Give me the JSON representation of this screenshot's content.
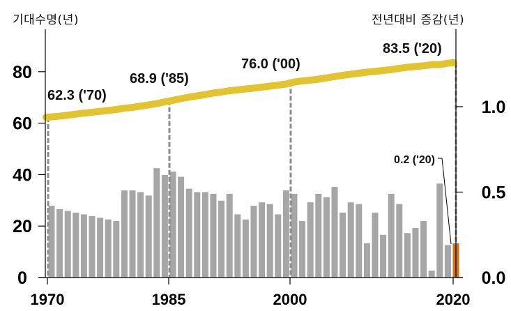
{
  "chart_data": {
    "type": "bar+line",
    "titles": {
      "left_axis": "기대수명(년)",
      "right_axis": "전년대비 증감(년)"
    },
    "x": [
      1970,
      1971,
      1972,
      1973,
      1974,
      1975,
      1976,
      1977,
      1978,
      1979,
      1980,
      1981,
      1982,
      1983,
      1984,
      1985,
      1986,
      1987,
      1988,
      1989,
      1990,
      1991,
      1992,
      1993,
      1994,
      1995,
      1996,
      1997,
      1998,
      1999,
      2000,
      2001,
      2002,
      2003,
      2004,
      2005,
      2006,
      2007,
      2008,
      2009,
      2010,
      2011,
      2012,
      2013,
      2014,
      2015,
      2016,
      2017,
      2018,
      2019,
      2020
    ],
    "x_tick_labels": [
      "1970",
      "1985",
      "2000",
      "2020"
    ],
    "x_ticks": [
      1970,
      1985,
      2000,
      2020
    ],
    "series": [
      {
        "name": "기대수명",
        "type": "line",
        "axis": "left",
        "color": "#E2C431",
        "values": [
          62.3,
          62.7,
          63.1,
          63.5,
          63.9,
          64.2,
          64.6,
          64.9,
          65.3,
          65.8,
          66.1,
          66.6,
          67.1,
          67.6,
          68.3,
          68.9,
          69.5,
          70.1,
          70.6,
          71.1,
          71.7,
          72.1,
          72.6,
          72.9,
          73.3,
          73.6,
          74.0,
          74.4,
          74.8,
          75.2,
          76.0,
          76.4,
          76.7,
          77.1,
          77.6,
          78.1,
          78.6,
          79.0,
          79.4,
          79.8,
          80.1,
          80.5,
          80.8,
          81.3,
          81.7,
          82.0,
          82.3,
          82.7,
          82.7,
          83.3,
          83.5
        ]
      },
      {
        "name": "전년대비 증감",
        "type": "bar",
        "axis": "right",
        "color": "#A6A6A6",
        "highlight_color": "#E46C0A",
        "highlight_index": 50,
        "values": [
          0.42,
          0.4,
          0.39,
          0.38,
          0.37,
          0.36,
          0.35,
          0.34,
          0.33,
          0.51,
          0.51,
          0.5,
          0.48,
          0.64,
          0.6,
          0.62,
          0.59,
          0.52,
          0.5,
          0.5,
          0.49,
          0.45,
          0.49,
          0.37,
          0.34,
          0.42,
          0.44,
          0.43,
          0.37,
          0.51,
          0.49,
          0.33,
          0.44,
          0.49,
          0.47,
          0.53,
          0.38,
          0.44,
          0.43,
          0.2,
          0.38,
          0.25,
          0.49,
          0.43,
          0.26,
          0.29,
          0.33,
          0.04,
          0.55,
          0.19,
          0.2
        ]
      }
    ],
    "left_axis": {
      "ylim": [
        0,
        90
      ],
      "ticks": [
        0,
        20,
        40,
        60,
        80
      ],
      "tick_labels": [
        "0",
        "20",
        "40",
        "60",
        "80"
      ]
    },
    "right_axis": {
      "ylim": [
        0,
        1.45
      ],
      "ticks": [
        0.0,
        0.5,
        1.0
      ],
      "tick_labels": [
        "0.0",
        "0.5",
        "1.0"
      ]
    },
    "annotations": [
      {
        "text": "62.3 ('70)",
        "x": 1970,
        "series": "기대수명"
      },
      {
        "text": "68.9 ('85)",
        "x": 1985,
        "series": "기대수명"
      },
      {
        "text": "76.0 ('00)",
        "x": 2000,
        "series": "기대수명"
      },
      {
        "text": "83.5 ('20)",
        "x": 2020,
        "series": "기대수명"
      },
      {
        "text": "0.2 ('20)",
        "x": 2020,
        "series": "전년대비 증감"
      }
    ],
    "reference_lines_x": [
      1970,
      1985,
      2000,
      2020
    ],
    "grid": false,
    "legend": "none"
  }
}
